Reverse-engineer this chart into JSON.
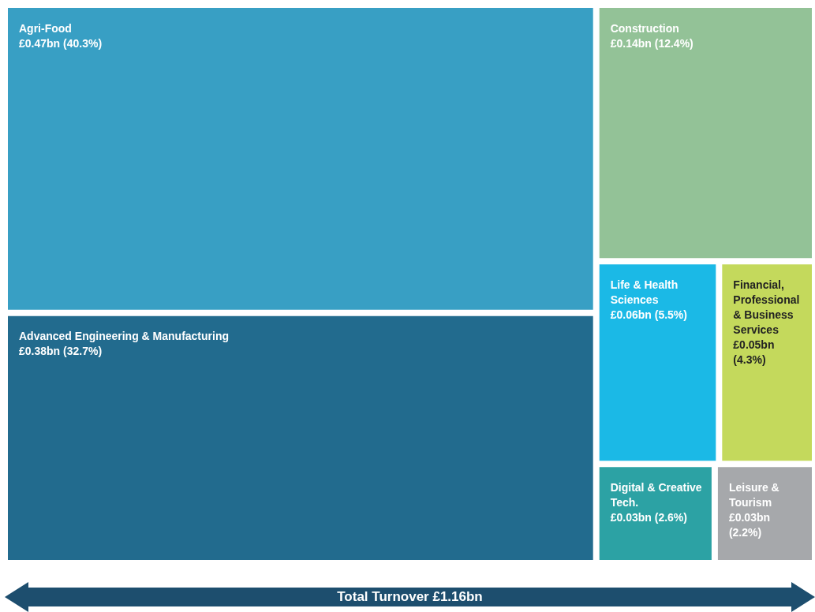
{
  "chart_data": {
    "type": "other",
    "categories": [
      "Agri-Food",
      "Advanced Engineering & Manufacturing",
      "Construction",
      "Life & Health Sciences",
      "Financial, Professional & Business Services",
      "Digital & Creative Tech.",
      "Leisure & Tourism"
    ],
    "values": [
      40.3,
      32.7,
      12.4,
      5.5,
      4.3,
      2.6,
      2.2
    ],
    "value_labels": [
      "£0.47bn (40.3%)",
      "£0.38bn (32.7%)",
      "£0.14bn (12.4%)",
      "£0.06bn (5.5%)",
      "£0.05bn (4.3%)",
      "£0.03bn (2.6%)",
      "£0.03bn (2.2%)"
    ],
    "colors": [
      "#389fc4",
      "#226b8e",
      "#93c297",
      "#1bb9e6",
      "#c4d95c",
      "#2ca2a4",
      "#a6a8ab"
    ],
    "annotations": [
      "Total Turnover £1.16bn"
    ]
  }
}
